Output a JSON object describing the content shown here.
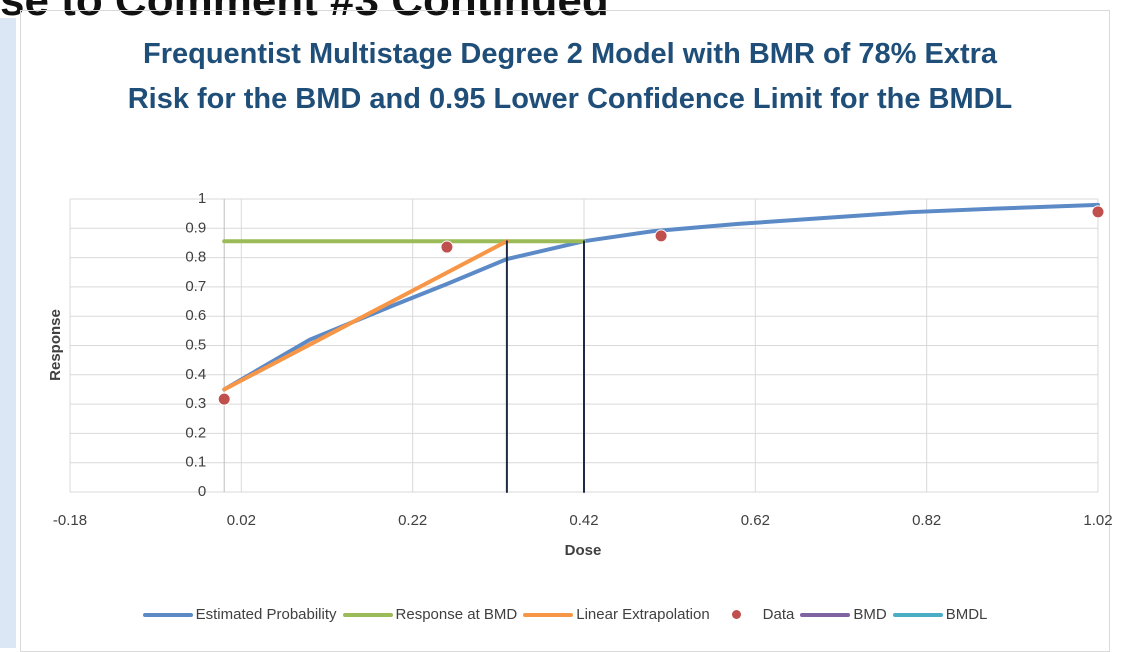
{
  "slide_title": "se to Comment #3 Continued",
  "chart_data": {
    "type": "line",
    "title": "Frequentist Multistage Degree 2 Model with BMR of 78% Extra Risk for the BMD and 0.95 Lower Confidence Limit for the BMDL",
    "x_label": "Dose",
    "y_label": "Response",
    "xlim": [
      -0.18,
      1.02
    ],
    "xticks": [
      -0.18,
      0.02,
      0.22,
      0.42,
      0.62,
      0.82,
      1.02
    ],
    "ylim": [
      0,
      1
    ],
    "yticks": [
      0,
      0.1,
      0.2,
      0.3,
      0.4,
      0.5,
      0.6,
      0.7,
      0.8,
      0.9,
      1
    ],
    "grid": true,
    "legend": "bottom",
    "series": [
      {
        "name": "Estimated Probability",
        "color": "#5b8ac6",
        "style": "line",
        "x": [
          0,
          0.1,
          0.2,
          0.26,
          0.33,
          0.42,
          0.5,
          0.6,
          0.7,
          0.8,
          0.9,
          1.02
        ],
        "values": [
          0.35,
          0.52,
          0.64,
          0.71,
          0.795,
          0.856,
          0.89,
          0.915,
          0.935,
          0.955,
          0.967,
          0.98
        ]
      },
      {
        "name": "Response at BMD",
        "color": "#9bbb59",
        "style": "line",
        "x": [
          0,
          0.42
        ],
        "values": [
          0.856,
          0.856
        ]
      },
      {
        "name": "Linear Extrapolation",
        "color": "#f79646",
        "style": "line",
        "x": [
          0,
          0.33
        ],
        "values": [
          0.35,
          0.856
        ]
      },
      {
        "name": "Data",
        "color": "#c0504d",
        "style": "marker",
        "x": [
          0,
          0.26,
          0.51,
          1.02
        ],
        "values": [
          0.317,
          0.836,
          0.874,
          0.956
        ]
      },
      {
        "name": "BMD",
        "color": "#8064a2",
        "line_color": "#1f2a44",
        "style": "line",
        "x": [
          0.42,
          0.42
        ],
        "values": [
          0,
          0.856
        ]
      },
      {
        "name": "BMDL",
        "color": "#4bacc6",
        "line_color": "#1f2a44",
        "style": "line",
        "x": [
          0.33,
          0.33
        ],
        "values": [
          0,
          0.856
        ]
      }
    ]
  }
}
